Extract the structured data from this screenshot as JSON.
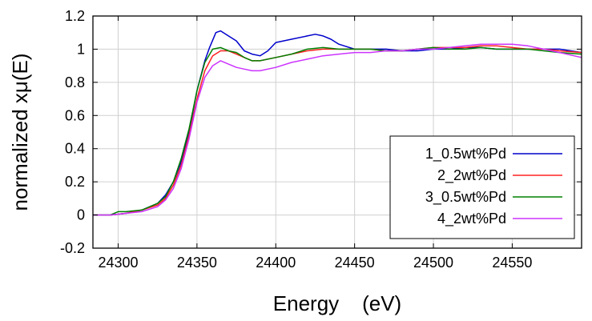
{
  "chart_data": {
    "type": "line",
    "title": "",
    "xlabel": "Energy    (eV)",
    "ylabel": "normalized xμ(E)",
    "xlim": [
      24284,
      24594
    ],
    "ylim": [
      -0.2,
      1.2
    ],
    "xticks": [
      24300,
      24350,
      24400,
      24450,
      24500,
      24550
    ],
    "yticks": [
      -0.2,
      0,
      0.2,
      0.4,
      0.6,
      0.8,
      1,
      1.2
    ],
    "ytick_labels": [
      "-0.2",
      "0",
      "0.2",
      "0.4",
      "0.6",
      "0.8",
      "1",
      "1.2"
    ],
    "grid": true,
    "legend_position": "bottom-right",
    "series": [
      {
        "name": "1_0.5wt%Pd",
        "color": "#0000cc",
        "x": [
          24284,
          24295,
          24305,
          24315,
          24325,
          24330,
          24335,
          24340,
          24345,
          24350,
          24355,
          24358,
          24362,
          24365,
          24370,
          24375,
          24380,
          24385,
          24390,
          24395,
          24400,
          24410,
          24420,
          24425,
          24430,
          24435,
          24440,
          24450,
          24460,
          24470,
          24480,
          24490,
          24500,
          24510,
          24520,
          24530,
          24540,
          24550,
          24560,
          24570,
          24580,
          24594
        ],
        "y": [
          0.0,
          0.0,
          0.01,
          0.03,
          0.07,
          0.12,
          0.2,
          0.32,
          0.5,
          0.75,
          0.93,
          1.01,
          1.1,
          1.11,
          1.08,
          1.05,
          0.99,
          0.97,
          0.96,
          0.99,
          1.04,
          1.06,
          1.08,
          1.09,
          1.08,
          1.06,
          1.03,
          1.0,
          1.0,
          1.0,
          0.99,
          0.99,
          1.0,
          1.0,
          1.01,
          1.01,
          1.0,
          1.0,
          1.0,
          1.0,
          1.0,
          0.98
        ]
      },
      {
        "name": "2_2wt%Pd",
        "color": "#ff2020",
        "x": [
          24284,
          24295,
          24305,
          24315,
          24325,
          24330,
          24335,
          24340,
          24345,
          24350,
          24355,
          24360,
          24365,
          24370,
          24375,
          24380,
          24385,
          24390,
          24400,
          24410,
          24420,
          24430,
          24440,
          24450,
          24460,
          24470,
          24480,
          24490,
          24500,
          24510,
          24520,
          24530,
          24540,
          24550,
          24560,
          24570,
          24580,
          24594
        ],
        "y": [
          0.0,
          0.0,
          0.01,
          0.03,
          0.06,
          0.1,
          0.18,
          0.3,
          0.48,
          0.7,
          0.87,
          0.96,
          0.99,
          0.99,
          0.97,
          0.95,
          0.93,
          0.93,
          0.95,
          0.97,
          0.99,
          1.0,
          1.0,
          1.0,
          1.0,
          0.99,
          0.99,
          1.0,
          1.01,
          1.01,
          1.01,
          1.02,
          1.02,
          1.01,
          1.0,
          1.0,
          0.99,
          0.98
        ]
      },
      {
        "name": "3_0.5wt%Pd",
        "color": "#008000",
        "x": [
          24284,
          24295,
          24300,
          24305,
          24315,
          24325,
          24330,
          24335,
          24340,
          24345,
          24350,
          24355,
          24360,
          24365,
          24370,
          24375,
          24380,
          24385,
          24390,
          24400,
          24410,
          24420,
          24430,
          24440,
          24450,
          24460,
          24470,
          24480,
          24490,
          24500,
          24510,
          24520,
          24530,
          24540,
          24550,
          24560,
          24570,
          24580,
          24594
        ],
        "y": [
          0.0,
          0.0,
          0.02,
          0.02,
          0.03,
          0.07,
          0.11,
          0.2,
          0.34,
          0.52,
          0.75,
          0.92,
          1.0,
          1.01,
          0.99,
          0.98,
          0.95,
          0.93,
          0.93,
          0.95,
          0.97,
          1.0,
          1.01,
          1.0,
          1.0,
          1.0,
          0.99,
          0.99,
          1.0,
          1.01,
          1.0,
          1.0,
          1.01,
          1.0,
          1.0,
          1.0,
          0.99,
          0.98,
          0.97
        ]
      },
      {
        "name": "4_2wt%Pd",
        "color": "#cc33ff",
        "x": [
          24284,
          24295,
          24305,
          24315,
          24325,
          24330,
          24335,
          24340,
          24345,
          24350,
          24355,
          24360,
          24365,
          24370,
          24375,
          24380,
          24385,
          24390,
          24400,
          24410,
          24420,
          24430,
          24440,
          24450,
          24460,
          24470,
          24480,
          24490,
          24500,
          24510,
          24520,
          24530,
          24540,
          24550,
          24560,
          24570,
          24580,
          24594
        ],
        "y": [
          0.0,
          0.0,
          0.01,
          0.02,
          0.05,
          0.09,
          0.16,
          0.28,
          0.46,
          0.68,
          0.83,
          0.9,
          0.93,
          0.91,
          0.89,
          0.88,
          0.87,
          0.87,
          0.89,
          0.92,
          0.94,
          0.96,
          0.97,
          0.98,
          0.98,
          0.99,
          0.99,
          1.0,
          1.0,
          1.01,
          1.02,
          1.03,
          1.03,
          1.03,
          1.02,
          1.0,
          0.98,
          0.95
        ]
      }
    ]
  }
}
